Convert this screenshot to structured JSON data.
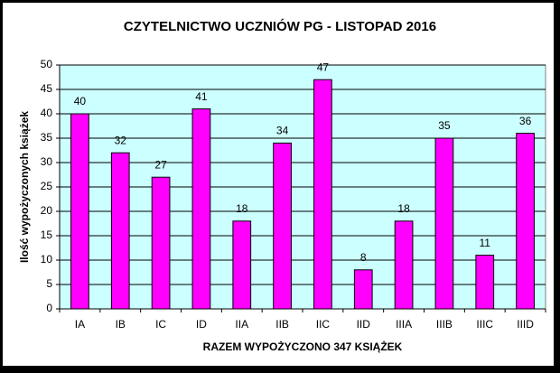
{
  "chart_data": {
    "type": "bar",
    "title": "CZYTELNICTWO UCZNIÓW PG - LISTOPAD 2016",
    "y_label": "Ilość wypożyczonych książek",
    "x_label": "RAZEM WYPOŻYCZONO  347 KSIĄŻEK",
    "categories": [
      "IA",
      "IB",
      "IC",
      "ID",
      "IIA",
      "IIB",
      "IIC",
      "IID",
      "IIIA",
      "IIIB",
      "IIIC",
      "IIID"
    ],
    "values": [
      40,
      32,
      27,
      41,
      18,
      34,
      47,
      8,
      18,
      35,
      11,
      36
    ],
    "color": "#ff00ff",
    "ylim": [
      0,
      50
    ],
    "yticks": [
      0,
      5,
      10,
      15,
      20,
      25,
      30,
      35,
      40,
      45,
      50
    ],
    "grid": true
  }
}
